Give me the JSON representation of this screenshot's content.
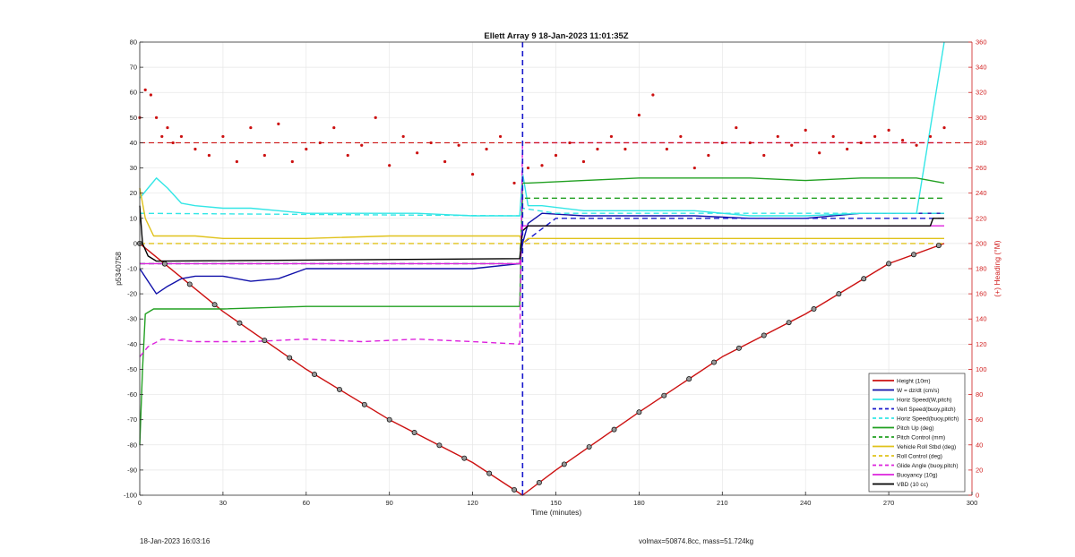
{
  "chart_data": {
    "type": "line",
    "title": "Ellett Array 9 18-Jan-2023 11:01:35Z",
    "xlabel": "Time (minutes)",
    "ylabel": "p5340758",
    "y2label": "(+) Heading (°M)",
    "xlim": [
      0,
      300
    ],
    "ylim": [
      -100,
      80
    ],
    "y2lim": [
      0,
      360
    ],
    "xticks": [
      0,
      30,
      60,
      90,
      120,
      150,
      180,
      210,
      240,
      270,
      300
    ],
    "yticks": [
      -100,
      -90,
      -80,
      -70,
      -60,
      -50,
      -40,
      -30,
      -20,
      -10,
      0,
      10,
      20,
      30,
      40,
      50,
      60,
      70,
      80
    ],
    "y2ticks": [
      0,
      20,
      40,
      60,
      80,
      100,
      120,
      140,
      160,
      180,
      200,
      220,
      240,
      260,
      280,
      300,
      320,
      340,
      360
    ],
    "grid": true,
    "legend_position": "bottom-right",
    "apogee_line_x": 138,
    "colors": {
      "red": "#cc1111",
      "blue": "#1111aa",
      "cyan": "#33e6e6",
      "green": "#22a022",
      "yellow": "#e0c21a",
      "magenta": "#dd22dd",
      "black": "#000000",
      "dashblue": "#1a1acc",
      "axis": "#262626",
      "heading_axis": "#d11f1f",
      "grid": "#e6e6e6"
    },
    "series": [
      {
        "name": "Height (10m)",
        "color_key": "red",
        "dash": "solid",
        "x": [
          0,
          30,
          60,
          90,
          120,
          138,
          150,
          180,
          210,
          240,
          270,
          290
        ],
        "y": [
          0,
          -27,
          -50,
          -70,
          -87,
          -100,
          -90,
          -67,
          -45,
          -28,
          -8,
          0
        ]
      },
      {
        "name": "W = dz/dt (cm/s)",
        "color_key": "blue",
        "dash": "solid",
        "x": [
          0,
          3,
          6,
          10,
          15,
          20,
          30,
          40,
          50,
          60,
          80,
          100,
          120,
          137,
          138,
          140,
          145,
          160,
          180,
          200,
          220,
          240,
          260,
          280,
          290
        ],
        "y": [
          -10,
          -15,
          -20,
          -17,
          -14,
          -13,
          -13,
          -15,
          -14,
          -10,
          -10,
          -10,
          -10,
          -8,
          0,
          8,
          12,
          11,
          11,
          11,
          10,
          10,
          12,
          12,
          12
        ]
      },
      {
        "name": "Horiz Speed(W,pitch)",
        "color_key": "cyan",
        "dash": "solid",
        "x": [
          0,
          3,
          6,
          10,
          15,
          20,
          30,
          40,
          50,
          60,
          80,
          100,
          120,
          137,
          138,
          140,
          145,
          160,
          180,
          200,
          220,
          240,
          260,
          280,
          290
        ],
        "y": [
          18,
          22,
          26,
          22,
          16,
          15,
          14,
          14,
          13,
          12,
          12,
          12,
          11,
          11,
          28,
          15,
          15,
          13,
          13,
          13,
          11,
          11,
          12,
          12,
          80
        ]
      },
      {
        "name": "Vert Speed(buoy,pitch)",
        "color_key": "dashblue",
        "dash": "dash",
        "x": [
          0,
          137,
          138,
          150,
          290
        ],
        "y": [
          -8,
          -8,
          0,
          10,
          10
        ]
      },
      {
        "name": "Horiz Speed(buoy,pitch)",
        "color_key": "cyan",
        "dash": "dash",
        "x": [
          0,
          137,
          138,
          150,
          290
        ],
        "y": [
          12,
          11,
          14,
          12,
          12
        ]
      },
      {
        "name": "Pitch Up (deg)",
        "color_key": "green",
        "dash": "solid",
        "x": [
          0,
          1,
          2,
          5,
          30,
          60,
          90,
          120,
          137,
          138,
          140,
          160,
          180,
          200,
          220,
          240,
          260,
          280,
          290
        ],
        "y": [
          -80,
          -50,
          -28,
          -26,
          -26,
          -25,
          -25,
          -25,
          -25,
          24,
          24,
          25,
          26,
          26,
          26,
          25,
          26,
          26,
          24
        ]
      },
      {
        "name": "Pitch Control (mm)",
        "color_key": "green",
        "dash": "dash",
        "x": [
          0,
          137,
          138,
          290
        ],
        "y": [
          -8,
          -8,
          18,
          18
        ]
      },
      {
        "name": "Vehicle Roll Stbd (deg)",
        "color_key": "yellow",
        "dash": "solid",
        "x": [
          0,
          2,
          5,
          10,
          20,
          30,
          60,
          90,
          120,
          137,
          138,
          140,
          160,
          180,
          200,
          220,
          240,
          260,
          280,
          290
        ],
        "y": [
          22,
          10,
          3,
          3,
          3,
          2,
          2,
          3,
          3,
          3,
          0,
          2,
          2,
          2,
          2,
          2,
          2,
          2,
          2,
          2
        ]
      },
      {
        "name": "Roll Control (deg)",
        "color_key": "yellow",
        "dash": "dash",
        "x": [
          0,
          137,
          138,
          290
        ],
        "y": [
          0,
          0,
          0,
          0
        ]
      },
      {
        "name": "Glide Angle (buoy,pitch)",
        "color_key": "magenta",
        "dash": "dash",
        "x": [
          0,
          3,
          8,
          20,
          40,
          60,
          80,
          100,
          120,
          137,
          138,
          150,
          180,
          210,
          240,
          270,
          290
        ],
        "y": [
          -45,
          -41,
          -38,
          -39,
          -39,
          -38,
          -39,
          -38,
          -39,
          -40,
          40,
          40,
          40,
          40,
          40,
          40,
          40
        ]
      },
      {
        "name": "Buoyancy (10g)",
        "color_key": "magenta",
        "dash": "solid",
        "x": [
          0,
          137,
          138,
          290
        ],
        "y": [
          -8,
          -8,
          7,
          7
        ]
      },
      {
        "name": "VBD (10 cc)",
        "color_key": "black",
        "dash": "solid",
        "x": [
          0,
          1,
          3,
          6,
          137,
          138,
          140,
          285,
          286,
          290
        ],
        "y": [
          15,
          0,
          -5,
          -7,
          -6,
          5,
          7,
          7,
          10,
          10
        ]
      }
    ],
    "heading_series": {
      "axis": "right",
      "x": [
        0,
        2,
        4,
        6,
        8,
        10,
        12,
        15,
        20,
        25,
        30,
        35,
        40,
        45,
        50,
        55,
        60,
        65,
        70,
        75,
        80,
        85,
        90,
        95,
        100,
        105,
        110,
        115,
        120,
        125,
        130,
        135,
        140,
        145,
        150,
        155,
        160,
        165,
        170,
        175,
        180,
        185,
        190,
        195,
        200,
        205,
        210,
        215,
        220,
        225,
        230,
        235,
        240,
        245,
        250,
        255,
        260,
        265,
        270,
        275,
        280,
        285,
        290
      ],
      "y": [
        300,
        322,
        318,
        300,
        285,
        292,
        280,
        285,
        275,
        270,
        285,
        265,
        292,
        270,
        295,
        265,
        275,
        280,
        292,
        270,
        278,
        300,
        262,
        285,
        272,
        280,
        265,
        278,
        255,
        275,
        285,
        248,
        260,
        262,
        270,
        280,
        265,
        275,
        285,
        275,
        302,
        318,
        275,
        285,
        260,
        270,
        280,
        292,
        280,
        270,
        285,
        278,
        290,
        272,
        285,
        275,
        280,
        285,
        290,
        282,
        278,
        285,
        292
      ]
    },
    "heading_reference": {
      "color_key": "red",
      "dash": "dash",
      "y": 280
    }
  },
  "footer": {
    "left": "18-Jan-2023 16:03:16",
    "right": "volmax=50874.8cc, mass=51.724kg"
  }
}
